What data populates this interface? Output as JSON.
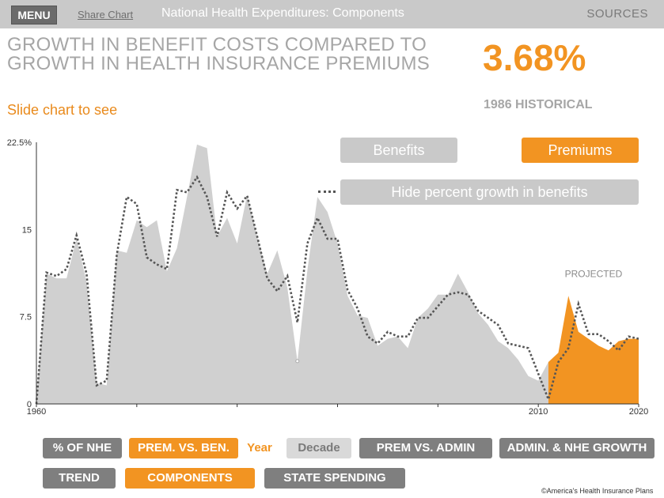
{
  "header": {
    "menu_label": "MENU",
    "share_label": "Share Chart",
    "title": "National Health Expenditures: Components",
    "sources_label": "SOURCES"
  },
  "headline": {
    "title": "GROWTH IN BENEFIT COSTS COMPARED TO GROWTH IN HEALTH INSURANCE PREMIUMS",
    "big_value": "3.68%",
    "big_value_caption": "1986 HISTORICAL",
    "slide_hint": "Slide chart to see"
  },
  "legend": {
    "benefits_label": "Benefits",
    "premiums_label": "Premiums",
    "hide_label": "Hide percent growth in benefits"
  },
  "nav": {
    "pct_nhe": "% OF NHE",
    "prem_vs_ben": "PREM. VS. BEN.",
    "year": "Year",
    "decade": "Decade",
    "prem_vs_admin": "PREM VS. ADMIN",
    "admin_nhe_growth": "ADMIN. & NHE GROWTH",
    "trend": "TREND",
    "components": "COMPONENTS",
    "state_spending": "STATE SPENDING"
  },
  "footer": {
    "copyright": "©America's Health Insurance Plans"
  },
  "colors": {
    "accent": "#f29422",
    "gray_fill": "#d0d0d0",
    "button_gray": "#7f7f7f"
  },
  "chart_data": {
    "type": "area",
    "ylim": [
      0,
      22.5
    ],
    "xlim": [
      1960,
      2020
    ],
    "y_ticks": [
      "0",
      "7.5",
      "15",
      "22.5%"
    ],
    "x_ticks": [
      "1960",
      "2010",
      "2020"
    ],
    "annotation": "PROJECTED",
    "historical_end": 2011,
    "series": [
      {
        "name": "Premiums",
        "x": [
          1961,
          1962,
          1963,
          1964,
          1965,
          1966,
          1967,
          1968,
          1969,
          1970,
          1971,
          1972,
          1973,
          1974,
          1975,
          1976,
          1977,
          1978,
          1979,
          1980,
          1981,
          1982,
          1983,
          1984,
          1985,
          1986,
          1987,
          1988,
          1989,
          1990,
          1991,
          1992,
          1993,
          1994,
          1995,
          1996,
          1997,
          1998,
          1999,
          2000,
          2001,
          2002,
          2003,
          2004,
          2005,
          2006,
          2007,
          2008,
          2009,
          2010,
          2011,
          2012,
          2013,
          2014,
          2015,
          2016,
          2017,
          2018,
          2019,
          2020
        ],
        "values": [
          11.2,
          10.8,
          10.8,
          14.2,
          10.5,
          1.8,
          1.6,
          13.2,
          13.0,
          15.8,
          15.2,
          15.8,
          11.4,
          13.4,
          17.8,
          22.3,
          22.0,
          14.4,
          16.0,
          13.8,
          18.0,
          14.4,
          11.2,
          13.2,
          10.0,
          3.68,
          11.5,
          17.8,
          16.5,
          13.8,
          9.3,
          7.6,
          7.4,
          5.0,
          5.6,
          5.8,
          4.8,
          7.4,
          8.2,
          9.4,
          9.4,
          11.2,
          9.6,
          7.8,
          6.8,
          5.4,
          4.8,
          3.8,
          2.4,
          2.0,
          3.6,
          4.4,
          9.3,
          6.2,
          5.6,
          5.0,
          4.6,
          5.4,
          5.6,
          5.6
        ]
      },
      {
        "name": "Benefits",
        "x": [
          1961,
          1962,
          1963,
          1964,
          1965,
          1966,
          1967,
          1968,
          1969,
          1970,
          1971,
          1972,
          1973,
          1974,
          1975,
          1976,
          1977,
          1978,
          1979,
          1980,
          1981,
          1982,
          1983,
          1984,
          1985,
          1986,
          1987,
          1988,
          1989,
          1990,
          1991,
          1992,
          1993,
          1994,
          1995,
          1996,
          1997,
          1998,
          1999,
          2000,
          2001,
          2002,
          2003,
          2004,
          2005,
          2006,
          2007,
          2008,
          2009,
          2010,
          2011,
          2012,
          2013,
          2014,
          2015,
          2016,
          2017,
          2018,
          2019,
          2020
        ],
        "values": [
          11.3,
          11.0,
          11.6,
          14.5,
          11.2,
          1.6,
          2.0,
          12.8,
          17.8,
          17.2,
          12.6,
          12.0,
          11.6,
          18.4,
          18.2,
          19.5,
          17.8,
          14.4,
          18.2,
          16.8,
          17.9,
          14.4,
          10.8,
          9.7,
          11.0,
          7.0,
          13.8,
          16.0,
          14.2,
          14.2,
          9.8,
          8.2,
          5.8,
          5.2,
          6.2,
          5.8,
          5.8,
          7.4,
          7.4,
          8.4,
          9.4,
          9.6,
          9.4,
          8.0,
          7.4,
          6.8,
          5.2,
          5.0,
          4.8,
          2.6,
          0.4,
          3.6,
          4.8,
          8.6,
          6.0,
          6.0,
          5.4,
          4.6,
          5.8,
          5.6
        ]
      }
    ]
  }
}
